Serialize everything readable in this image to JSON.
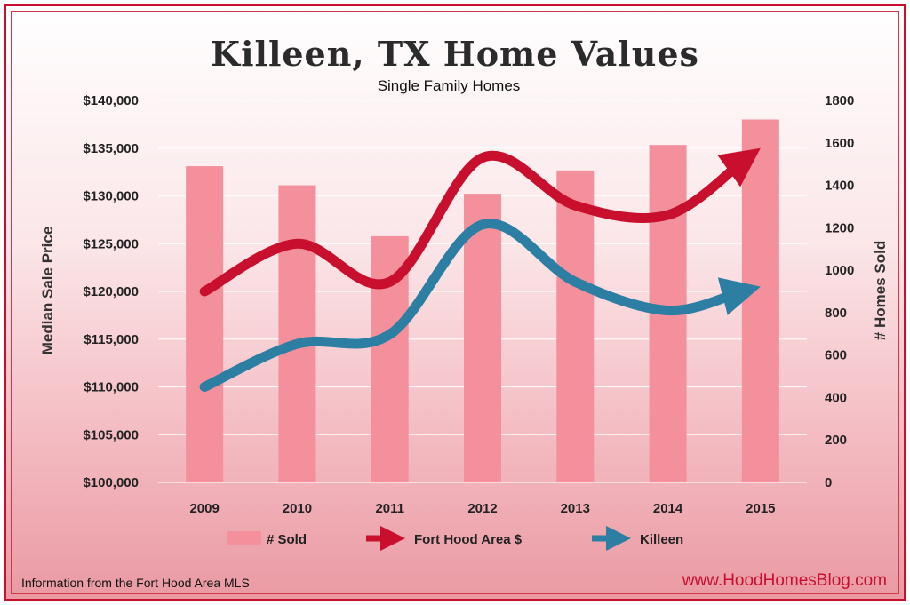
{
  "title": "Killeen, TX Home Values",
  "subtitle": "Single Family Homes",
  "footer": {
    "source": "Information from the Fort Hood Area MLS",
    "website": "www.HoodHomesBlog.com"
  },
  "colors": {
    "sold_bars": "#f4909b",
    "fort_hood_line": "#c8102e",
    "killeen_line": "#2d7ea3",
    "frame_border": "#c8102e"
  },
  "chart_data": {
    "type": "bar",
    "categories": [
      "2009",
      "2010",
      "2011",
      "2012",
      "2013",
      "2014",
      "2015"
    ],
    "ylabel": "Median Sale Price",
    "y2label": "# Homes Sold",
    "ylim": [
      100000,
      140000
    ],
    "y2lim": [
      0,
      1800
    ],
    "yticks": [
      "$100,000",
      "$105,000",
      "$110,000",
      "$115,000",
      "$120,000",
      "$125,000",
      "$130,000",
      "$135,000",
      "$140,000"
    ],
    "y2ticks": [
      "0",
      "200",
      "400",
      "600",
      "800",
      "1000",
      "1200",
      "1400",
      "1600",
      "1800"
    ],
    "grid": true,
    "legend_position": "bottom",
    "series": [
      {
        "name": "# Sold",
        "type": "bar",
        "axis": "right",
        "values": [
          1490,
          1400,
          1160,
          1360,
          1470,
          1590,
          1710
        ]
      },
      {
        "name": "Fort Hood Area $",
        "type": "line",
        "axis": "left",
        "values": [
          120000,
          125000,
          121000,
          134000,
          129000,
          128000,
          135000
        ]
      },
      {
        "name": "Killeen",
        "type": "line",
        "axis": "left",
        "values": [
          110000,
          114500,
          115500,
          127000,
          121000,
          118000,
          120500
        ]
      }
    ]
  }
}
